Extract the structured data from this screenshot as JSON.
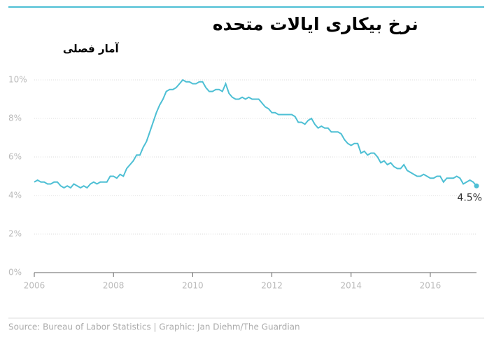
{
  "chart_data": {
    "type": "line",
    "title": "نرخ بیکاری ایالات متحده",
    "subtitle": "آمار فصلی",
    "source": "Source: Bureau of Labor Statistics | Graphic: Jan Diehm/The Guardian",
    "x": [
      2006,
      2006.083,
      2006.167,
      2006.25,
      2006.333,
      2006.417,
      2006.5,
      2006.583,
      2006.667,
      2006.75,
      2006.833,
      2006.917,
      2007,
      2007.083,
      2007.167,
      2007.25,
      2007.333,
      2007.417,
      2007.5,
      2007.583,
      2007.667,
      2007.75,
      2007.833,
      2007.917,
      2008,
      2008.083,
      2008.167,
      2008.25,
      2008.333,
      2008.417,
      2008.5,
      2008.583,
      2008.667,
      2008.75,
      2008.833,
      2008.917,
      2009,
      2009.083,
      2009.167,
      2009.25,
      2009.333,
      2009.417,
      2009.5,
      2009.583,
      2009.667,
      2009.75,
      2009.833,
      2009.917,
      2010,
      2010.083,
      2010.167,
      2010.25,
      2010.333,
      2010.417,
      2010.5,
      2010.583,
      2010.667,
      2010.75,
      2010.833,
      2010.917,
      2011,
      2011.083,
      2011.167,
      2011.25,
      2011.333,
      2011.417,
      2011.5,
      2011.583,
      2011.667,
      2011.75,
      2011.833,
      2011.917,
      2012,
      2012.083,
      2012.167,
      2012.25,
      2012.333,
      2012.417,
      2012.5,
      2012.583,
      2012.667,
      2012.75,
      2012.833,
      2012.917,
      2013,
      2013.083,
      2013.167,
      2013.25,
      2013.333,
      2013.417,
      2013.5,
      2013.583,
      2013.667,
      2013.75,
      2013.833,
      2013.917,
      2014,
      2014.083,
      2014.167,
      2014.25,
      2014.333,
      2014.417,
      2014.5,
      2014.583,
      2014.667,
      2014.75,
      2014.833,
      2014.917,
      2015,
      2015.083,
      2015.167,
      2015.25,
      2015.333,
      2015.417,
      2015.5,
      2015.583,
      2015.667,
      2015.75,
      2015.833,
      2015.917,
      2016,
      2016.083,
      2016.167,
      2016.25,
      2016.333,
      2016.417,
      2016.5,
      2016.583,
      2016.667,
      2016.75,
      2016.833,
      2016.917,
      2017,
      2017.083,
      2017.167
    ],
    "series": [
      {
        "color": "#4dbfd4",
        "values": [
          4.7,
          4.8,
          4.7,
          4.7,
          4.6,
          4.6,
          4.7,
          4.7,
          4.5,
          4.4,
          4.5,
          4.4,
          4.6,
          4.5,
          4.4,
          4.5,
          4.4,
          4.6,
          4.7,
          4.6,
          4.7,
          4.7,
          4.7,
          5.0,
          5.0,
          4.9,
          5.1,
          5.0,
          5.4,
          5.6,
          5.8,
          6.1,
          6.1,
          6.5,
          6.8,
          7.3,
          7.8,
          8.3,
          8.7,
          9.0,
          9.4,
          9.5,
          9.5,
          9.6,
          9.8,
          10.0,
          9.9,
          9.9,
          9.8,
          9.8,
          9.9,
          9.9,
          9.6,
          9.4,
          9.4,
          9.5,
          9.5,
          9.4,
          9.8,
          9.3,
          9.1,
          9.0,
          9.0,
          9.1,
          9.0,
          9.1,
          9.0,
          9.0,
          9.0,
          8.8,
          8.6,
          8.5,
          8.3,
          8.3,
          8.2,
          8.2,
          8.2,
          8.2,
          8.2,
          8.1,
          7.8,
          7.8,
          7.7,
          7.9,
          8.0,
          7.7,
          7.5,
          7.6,
          7.5,
          7.5,
          7.3,
          7.3,
          7.3,
          7.2,
          6.9,
          6.7,
          6.6,
          6.7,
          6.7,
          6.2,
          6.3,
          6.1,
          6.2,
          6.2,
          6.0,
          5.7,
          5.8,
          5.6,
          5.7,
          5.5,
          5.4,
          5.4,
          5.6,
          5.3,
          5.2,
          5.1,
          5.0,
          5.0,
          5.1,
          5.0,
          4.9,
          4.9,
          5.0,
          5.0,
          4.7,
          4.9,
          4.9,
          4.9,
          5.0,
          4.9,
          4.6,
          4.7,
          4.8,
          4.7,
          4.5
        ],
        "value_labels": [
          null,
          null,
          null,
          null,
          null,
          null,
          null,
          null,
          null,
          null,
          null,
          null,
          null,
          null,
          null,
          null,
          null,
          null,
          null,
          null,
          null,
          null,
          null,
          null,
          null,
          null,
          null,
          null,
          null,
          null,
          null,
          null,
          null,
          null,
          null,
          null,
          null,
          null,
          null,
          null,
          null,
          null,
          null,
          null,
          null,
          null,
          null,
          null,
          null,
          null,
          null,
          null,
          null,
          null,
          null,
          null,
          null,
          null,
          null,
          null,
          null,
          null,
          null,
          null,
          null,
          null,
          null,
          null,
          null,
          null,
          null,
          null,
          null,
          null,
          null,
          null,
          null,
          null,
          null,
          null,
          null,
          null,
          null,
          null,
          null,
          null,
          null,
          null,
          null,
          null,
          null,
          null,
          null,
          null,
          null,
          null,
          null,
          null,
          null,
          null,
          null,
          null,
          null,
          null,
          null,
          null,
          null,
          null,
          null,
          null,
          null,
          null,
          null,
          null,
          null,
          null,
          null,
          null,
          null,
          null,
          null,
          null,
          null,
          null,
          null,
          null,
          null,
          null,
          null,
          null,
          null,
          null,
          null,
          null,
          "4.5%"
        ]
      }
    ],
    "xlim": [
      2006,
      2017.167
    ],
    "xticks": [
      2006,
      2008,
      2010,
      2012,
      2014,
      2016
    ],
    "ylim": [
      0,
      10
    ],
    "yticks": [
      {
        "value": 0,
        "label": "0%"
      },
      {
        "value": 2,
        "label": "2%"
      },
      {
        "value": 4,
        "label": "4%"
      },
      {
        "value": 6,
        "label": "6%"
      },
      {
        "value": 8,
        "label": "8%"
      },
      {
        "value": 10,
        "label": "10%"
      }
    ],
    "grid": true
  }
}
